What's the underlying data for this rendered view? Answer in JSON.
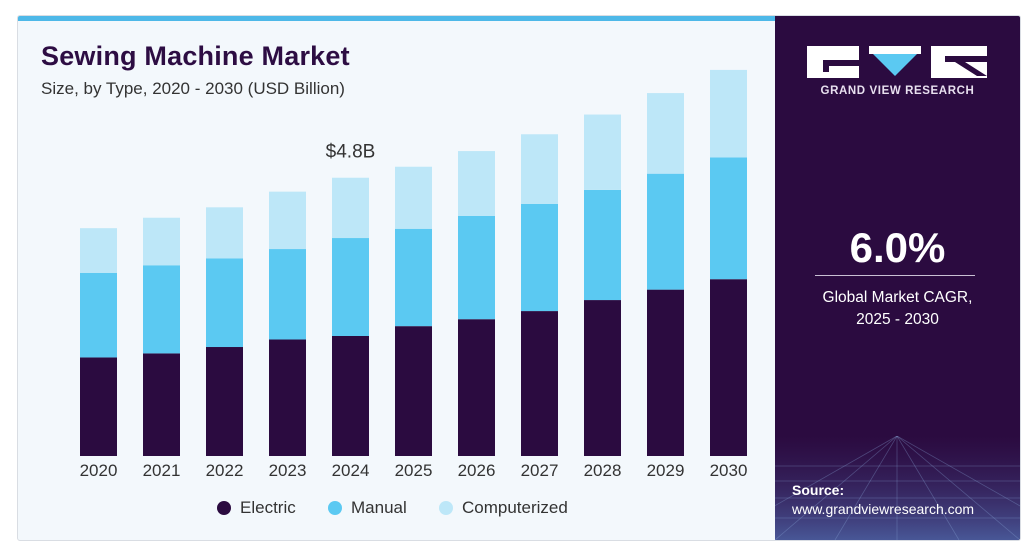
{
  "header": {
    "title": "Sewing Machine Market",
    "subtitle": "Size, by Type, 2020 - 2030 (USD Billion)"
  },
  "chart_data": {
    "type": "bar",
    "stacked": true,
    "title": "Sewing Machine Market",
    "subtitle": "Size, by Type, 2020 - 2030 (USD Billion)",
    "categories": [
      "2020",
      "2021",
      "2022",
      "2023",
      "2024",
      "2025",
      "2026",
      "2027",
      "2028",
      "2029",
      "2030"
    ],
    "series": [
      {
        "name": "Electric",
        "color": "#2b0b40",
        "values": [
          1.7,
          1.77,
          1.88,
          2.01,
          2.07,
          2.24,
          2.36,
          2.5,
          2.69,
          2.87,
          3.05
        ]
      },
      {
        "name": "Manual",
        "color": "#5bc9f2",
        "values": [
          1.46,
          1.52,
          1.53,
          1.56,
          1.69,
          1.68,
          1.78,
          1.85,
          1.9,
          2.0,
          2.1
        ]
      },
      {
        "name": "Computerized",
        "color": "#bde7f8",
        "values": [
          0.77,
          0.82,
          0.88,
          0.99,
          1.04,
          1.07,
          1.12,
          1.2,
          1.3,
          1.39,
          1.51
        ]
      }
    ],
    "annotation": {
      "category": "2024",
      "label": "$4.8B"
    },
    "ylim": [
      0,
      6.9
    ],
    "grid": false,
    "legend_position": "bottom"
  },
  "legend": {
    "items": [
      {
        "label": "Electric",
        "color": "#2b0b40"
      },
      {
        "label": "Manual",
        "color": "#5bc9f2"
      },
      {
        "label": "Computerized",
        "color": "#bde7f8"
      }
    ]
  },
  "sidebar": {
    "brand": "GRAND VIEW RESEARCH",
    "cagr_value": "6.0%",
    "cagr_label_line1": "Global Market CAGR,",
    "cagr_label_line2": "2025 - 2030",
    "source_title": "Source:",
    "source_url": "www.grandviewresearch.com"
  },
  "icons": {
    "logo": "gvr-logo-icon",
    "legend_marker": "circle-dot-icon"
  }
}
